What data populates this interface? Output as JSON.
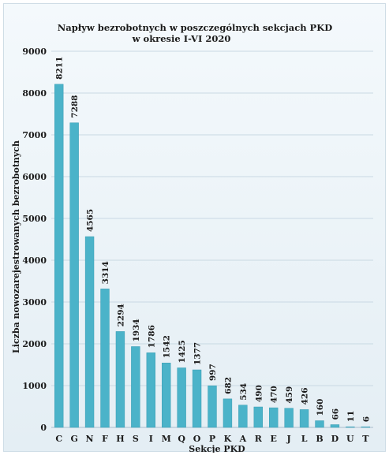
{
  "chart_data": {
    "type": "bar",
    "title_line1": "Napływ bezrobotnych w poszczególnych sekcjach PKD",
    "title_line2": "w  okresie I-VI 2020",
    "xlabel": "Sekcje PKD",
    "ylabel": "Liczba nowozarejestrowanych bezrobotnych",
    "ylim": [
      0,
      9000
    ],
    "yticks": [
      0,
      1000,
      2000,
      3000,
      4000,
      5000,
      6000,
      7000,
      8000,
      9000
    ],
    "grid": true,
    "legend": "none",
    "categories": [
      "C",
      "G",
      "N",
      "F",
      "H",
      "S",
      "I",
      "M",
      "Q",
      "O",
      "P",
      "K",
      "A",
      "R",
      "E",
      "J",
      "L",
      "B",
      "D",
      "U",
      "T"
    ],
    "values": [
      8211,
      7288,
      4565,
      3314,
      2294,
      1934,
      1786,
      1542,
      1425,
      1377,
      997,
      682,
      534,
      490,
      470,
      459,
      426,
      160,
      66,
      11,
      6
    ],
    "data_labels": [
      "8211",
      "7288",
      "4565",
      "3314",
      "2294",
      "1934",
      "1786",
      "1542",
      "1425",
      "1377",
      "997",
      "682",
      "534",
      "490",
      "470",
      "459",
      "426",
      "160",
      "66",
      "11",
      "6"
    ],
    "colors": {
      "bar": "#4bb3c9",
      "bar_edge": "#3a9db3",
      "grid": "#c9d9e3"
    }
  }
}
